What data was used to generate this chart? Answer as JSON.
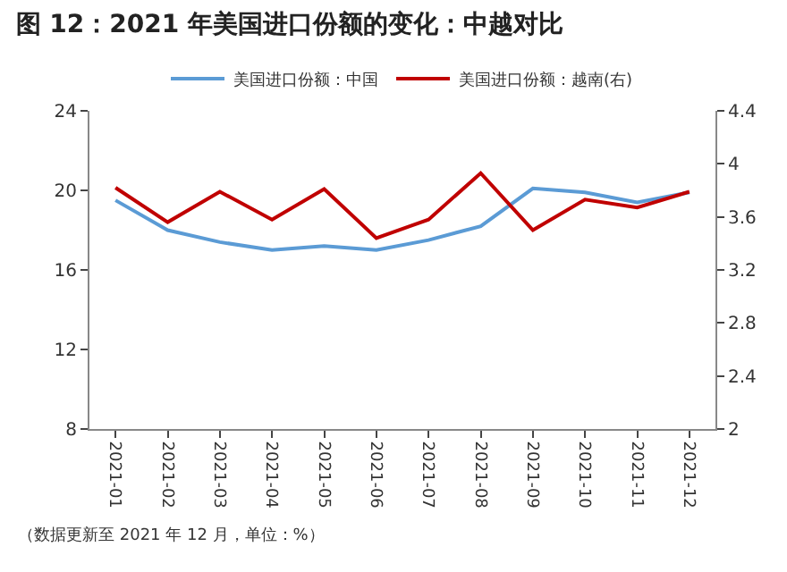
{
  "chart_data": {
    "type": "line",
    "title": "图 12：2021 年美国进口份额的变化：中越对比",
    "categories": [
      "2021-01",
      "2021-02",
      "2021-03",
      "2021-04",
      "2021-05",
      "2021-06",
      "2021-07",
      "2021-08",
      "2021-09",
      "2021-10",
      "2021-11",
      "2021-12"
    ],
    "series": [
      {
        "name": "美国进口份额：中国",
        "color": "#5b9bd5",
        "values": [
          19.5,
          18.0,
          17.4,
          17.0,
          17.2,
          17.0,
          17.5,
          18.2,
          20.1,
          19.9,
          19.4,
          19.9
        ]
      },
      {
        "name": "美国进口份额：越南(右)",
        "color": "#c00000",
        "axis": "y2",
        "values": [
          3.82,
          3.56,
          3.79,
          3.58,
          3.81,
          3.44,
          3.58,
          3.93,
          3.5,
          3.73,
          3.67,
          3.79
        ]
      }
    ],
    "ylim": [
      8,
      24
    ],
    "yticks": [
      8,
      12,
      16,
      20,
      24
    ],
    "y2lim": [
      2,
      4.4
    ],
    "y2ticks": [
      2,
      {
        "value": 2.4,
        "label": "2.4"
      },
      {
        "value": 2.8,
        "label": "2.8"
      },
      {
        "value": 3.2,
        "label": "3.2"
      },
      {
        "value": 3.6,
        "label": "3.6"
      },
      4,
      {
        "value": 4.4,
        "label": "4.4"
      }
    ],
    "grid": false,
    "legend": "top",
    "marker": "none",
    "line_style": "solid",
    "annotations": [
      "（数据更新至 2021 年 12 月，单位：%）"
    ]
  }
}
